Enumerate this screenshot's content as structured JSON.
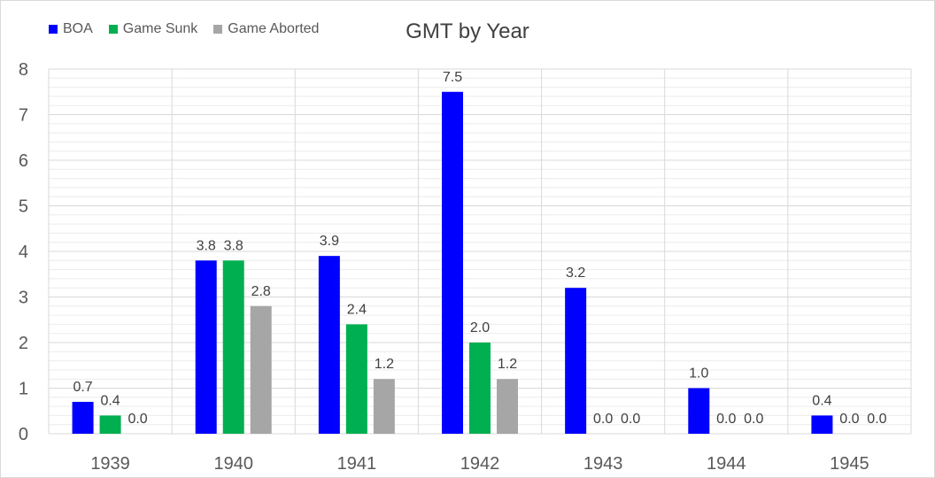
{
  "chart_data": {
    "type": "bar",
    "title": "GMT by Year",
    "xlabel": "",
    "ylabel": "",
    "ylim": [
      0,
      8
    ],
    "yticks": [
      "0",
      "1",
      "2",
      "3",
      "4",
      "5",
      "6",
      "7",
      "8"
    ],
    "categories": [
      "1939",
      "1940",
      "1941",
      "1942",
      "1943",
      "1944",
      "1945"
    ],
    "legend_position": "top-left",
    "grid": true,
    "series": [
      {
        "name": "BOA",
        "color": "#0000ff",
        "values": [
          0.7,
          3.8,
          3.9,
          7.5,
          3.2,
          1.0,
          0.4
        ],
        "labels": [
          "0.7",
          "3.8",
          "3.9",
          "7.5",
          "3.2",
          "1.0",
          "0.4"
        ]
      },
      {
        "name": "Game Sunk",
        "color": "#00b050",
        "values": [
          0.4,
          3.8,
          2.4,
          2.0,
          0.0,
          0.0,
          0.0
        ],
        "labels": [
          "0.4",
          "3.8",
          "2.4",
          "2.0",
          "0.0",
          "0.0",
          "0.0"
        ]
      },
      {
        "name": "Game Aborted",
        "color": "#a6a6a6",
        "values": [
          0.0,
          2.8,
          1.2,
          1.2,
          0.0,
          0.0,
          0.0
        ],
        "labels": [
          "0.0",
          "2.8",
          "1.2",
          "1.2",
          "0.0",
          "0.0",
          "0.0"
        ]
      }
    ]
  }
}
